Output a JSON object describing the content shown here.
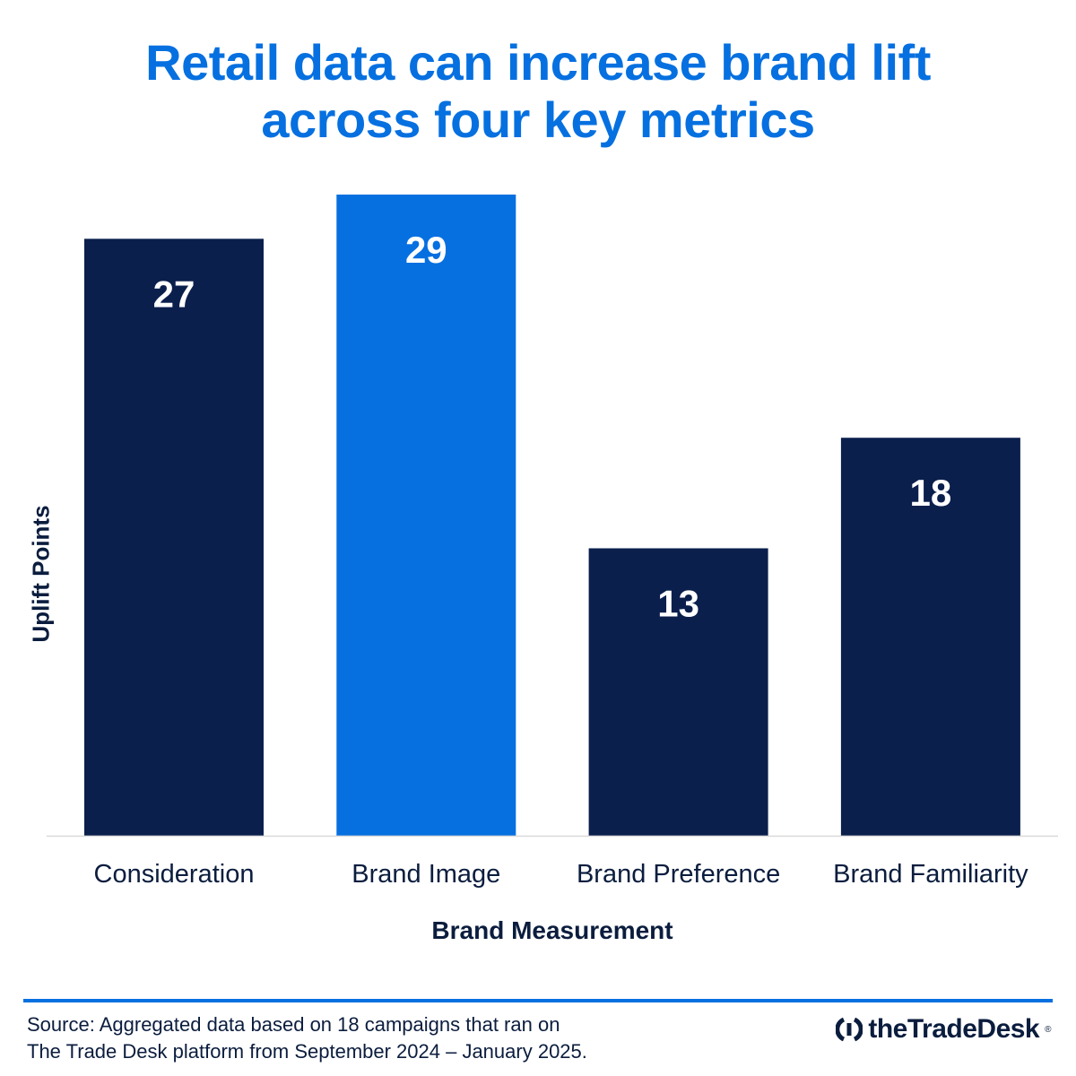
{
  "title_lines": [
    "Retail data can increase brand lift",
    "across four key metrics"
  ],
  "colors": {
    "title": "#0670e0",
    "bar_default": "#0b1f4d",
    "bar_highlight": "#0670e0",
    "axis_line": "#d9d9d9",
    "text_dark": "#0b1d3e"
  },
  "chart_data": {
    "type": "bar",
    "categories": [
      "Consideration",
      "Brand Image",
      "Brand Preference",
      "Brand Familiarity"
    ],
    "values": [
      27,
      29,
      13,
      18
    ],
    "highlight_index": 1,
    "xlabel": "Brand Measurement",
    "ylabel": "Uplift Points",
    "ylim": [
      0,
      29
    ],
    "grid": false,
    "data_labels": true
  },
  "footer": {
    "source_lines": [
      "Source: Aggregated data based on 18 campaigns that ran on",
      "The Trade Desk platform from September 2024 – January 2025."
    ],
    "logo_text": "theTradeDesk",
    "logo_mark": "®",
    "logo_icon": "trade-desk-logo-icon"
  }
}
